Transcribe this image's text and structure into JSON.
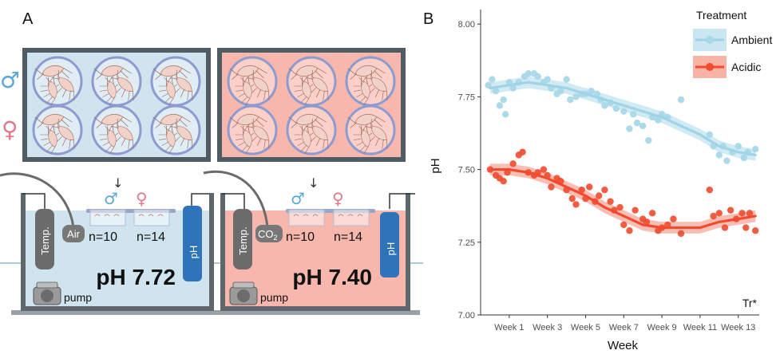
{
  "colors": {
    "ambient": "#a8d8e8",
    "ambient_line": "#9fd3e6",
    "ambient_band": "#c9e6f1",
    "acidic": "#f04a2f",
    "acidic_band": "#f7b3a6",
    "tank_ambient": "#cfe4ee",
    "tank_acidic": "#f7b7ad",
    "probe_ph": "#2f73b9",
    "probe_temp": "#6b6b6b",
    "male_symbol": "#5aa7d8",
    "female_symbol": "#e07a8b"
  },
  "panel_a": {
    "letter": "A",
    "male_symbol": "♂",
    "female_symbol": "♀",
    "ambient_tank": {
      "gas_label": "Air",
      "temp_label": "Temp.",
      "ph_probe_label": "pH",
      "n_male": "n=10",
      "n_female": "n=14",
      "ph_value": "pH 7.72",
      "pump_label": "pump",
      "male_symbol": "♂",
      "female_symbol": "♀"
    },
    "acidic_tank": {
      "gas_label": "CO",
      "gas_subscript": "2",
      "temp_label": "Temp.",
      "ph_probe_label": "pH",
      "n_male": "n=10",
      "n_female": "n=14",
      "ph_value": "pH 7.40",
      "pump_label": "pump",
      "male_symbol": "♂",
      "female_symbol": "♀"
    },
    "arrow_glyph": "↓"
  },
  "panel_b": {
    "letter": "B",
    "annotation": "Tr*"
  },
  "chart_data": {
    "type": "scatter",
    "xlabel": "Week",
    "ylabel": "pH",
    "x_ticks": [
      1,
      3,
      5,
      7,
      9,
      11,
      13
    ],
    "x_tick_labels": [
      "Week 1",
      "Week 3",
      "Week 5",
      "Week 7",
      "Week 9",
      "Week 11",
      "Week 13"
    ],
    "xlim": [
      -0.5,
      14.1
    ],
    "ylim": [
      7.0,
      8.05
    ],
    "y_ticks": [
      7.0,
      7.25,
      7.5,
      7.75,
      8.0
    ],
    "y_tick_labels": [
      "7.00",
      "7.25",
      "7.50",
      "7.75",
      "8.00"
    ],
    "grid": false,
    "legend": {
      "title": "Treatment",
      "position": "top-right"
    },
    "series": [
      {
        "name": "Ambient",
        "points": [
          [
            -0.1,
            7.79
          ],
          [
            0.1,
            7.81
          ],
          [
            0.3,
            7.77
          ],
          [
            0.5,
            7.72
          ],
          [
            0.7,
            7.74
          ],
          [
            0.8,
            7.69
          ],
          [
            1.0,
            7.8
          ],
          [
            1.2,
            7.78
          ],
          [
            1.5,
            7.8
          ],
          [
            1.8,
            7.82
          ],
          [
            2.0,
            7.83
          ],
          [
            2.3,
            7.83
          ],
          [
            2.5,
            7.82
          ],
          [
            2.8,
            7.8
          ],
          [
            3.0,
            7.81
          ],
          [
            3.2,
            7.78
          ],
          [
            3.5,
            7.76
          ],
          [
            3.7,
            7.77
          ],
          [
            4.0,
            7.81
          ],
          [
            4.2,
            7.74
          ],
          [
            4.5,
            7.75
          ],
          [
            4.8,
            7.76
          ],
          [
            5.0,
            7.76
          ],
          [
            5.3,
            7.77
          ],
          [
            5.6,
            7.76
          ],
          [
            5.8,
            7.74
          ],
          [
            6.0,
            7.72
          ],
          [
            6.3,
            7.73
          ],
          [
            6.6,
            7.71
          ],
          [
            7.0,
            7.7
          ],
          [
            7.3,
            7.64
          ],
          [
            7.5,
            7.69
          ],
          [
            7.7,
            7.66
          ],
          [
            8.0,
            7.65
          ],
          [
            8.3,
            7.6
          ],
          [
            8.5,
            7.68
          ],
          [
            8.8,
            7.67
          ],
          [
            9.0,
            7.69
          ],
          [
            9.3,
            7.68
          ],
          [
            10.0,
            7.74
          ],
          [
            11.5,
            7.62
          ],
          [
            11.7,
            7.58
          ],
          [
            12.0,
            7.55
          ],
          [
            12.2,
            7.58
          ],
          [
            12.4,
            7.53
          ],
          [
            12.7,
            7.56
          ],
          [
            13.0,
            7.58
          ],
          [
            13.3,
            7.54
          ],
          [
            13.5,
            7.56
          ],
          [
            13.9,
            7.57
          ]
        ],
        "fit": [
          [
            0.0,
            7.78
          ],
          [
            1.0,
            7.79
          ],
          [
            2.0,
            7.8
          ],
          [
            3.0,
            7.79
          ],
          [
            4.0,
            7.78
          ],
          [
            5.0,
            7.76
          ],
          [
            6.0,
            7.74
          ],
          [
            7.0,
            7.72
          ],
          [
            8.0,
            7.7
          ],
          [
            9.0,
            7.68
          ],
          [
            10.0,
            7.65
          ],
          [
            11.0,
            7.62
          ],
          [
            12.0,
            7.58
          ],
          [
            13.0,
            7.56
          ],
          [
            13.9,
            7.55
          ]
        ],
        "band_halfwidth": 0.02
      },
      {
        "name": "Acidic",
        "points": [
          [
            0.0,
            7.5
          ],
          [
            0.3,
            7.48
          ],
          [
            0.5,
            7.47
          ],
          [
            0.7,
            7.46
          ],
          [
            0.9,
            7.49
          ],
          [
            1.2,
            7.52
          ],
          [
            1.5,
            7.55
          ],
          [
            1.7,
            7.56
          ],
          [
            2.0,
            7.49
          ],
          [
            2.3,
            7.48
          ],
          [
            2.5,
            7.49
          ],
          [
            2.8,
            7.5
          ],
          [
            3.0,
            7.48
          ],
          [
            3.2,
            7.44
          ],
          [
            3.5,
            7.47
          ],
          [
            3.7,
            7.46
          ],
          [
            4.0,
            7.43
          ],
          [
            4.3,
            7.4
          ],
          [
            4.5,
            7.38
          ],
          [
            4.8,
            7.43
          ],
          [
            5.0,
            7.4
          ],
          [
            5.2,
            7.44
          ],
          [
            5.5,
            7.39
          ],
          [
            5.7,
            7.41
          ],
          [
            6.0,
            7.43
          ],
          [
            6.3,
            7.39
          ],
          [
            6.5,
            7.36
          ],
          [
            6.8,
            7.37
          ],
          [
            7.0,
            7.31
          ],
          [
            7.3,
            7.29
          ],
          [
            7.6,
            7.36
          ],
          [
            8.0,
            7.33
          ],
          [
            8.2,
            7.32
          ],
          [
            8.5,
            7.35
          ],
          [
            8.8,
            7.29
          ],
          [
            9.0,
            7.3
          ],
          [
            9.3,
            7.31
          ],
          [
            9.6,
            7.33
          ],
          [
            10.0,
            7.28
          ],
          [
            11.5,
            7.43
          ],
          [
            11.7,
            7.34
          ],
          [
            12.0,
            7.35
          ],
          [
            12.3,
            7.3
          ],
          [
            12.6,
            7.36
          ],
          [
            12.9,
            7.33
          ],
          [
            13.2,
            7.35
          ],
          [
            13.4,
            7.3
          ],
          [
            13.6,
            7.35
          ],
          [
            13.9,
            7.29
          ]
        ],
        "fit": [
          [
            0.0,
            7.5
          ],
          [
            1.0,
            7.5
          ],
          [
            2.0,
            7.49
          ],
          [
            3.0,
            7.47
          ],
          [
            4.0,
            7.44
          ],
          [
            5.0,
            7.41
          ],
          [
            6.0,
            7.37
          ],
          [
            7.0,
            7.34
          ],
          [
            8.0,
            7.31
          ],
          [
            9.0,
            7.3
          ],
          [
            10.0,
            7.3
          ],
          [
            11.0,
            7.3
          ],
          [
            12.0,
            7.32
          ],
          [
            13.0,
            7.33
          ],
          [
            13.9,
            7.34
          ]
        ],
        "band_halfwidth": 0.02
      }
    ]
  }
}
